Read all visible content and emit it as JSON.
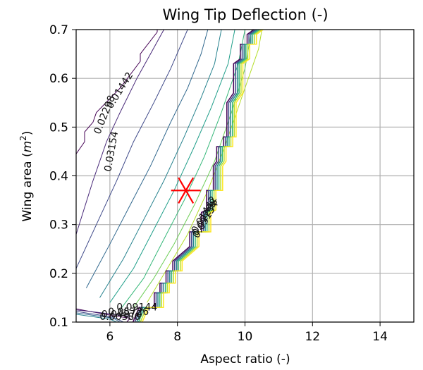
{
  "chart_data": {
    "type": "contour",
    "title": "Wing Tip Deflection (-)",
    "xlabel": "Aspect ratio (-)",
    "ylabel_text": "Wing area (",
    "ylabel_math": "m",
    "ylabel_sup": "2",
    "ylabel_close": ")",
    "xlim": [
      5,
      15
    ],
    "ylim": [
      0.1,
      0.7
    ],
    "xticks": [
      6,
      8,
      10,
      12,
      14
    ],
    "yticks": [
      0.1,
      0.2,
      0.3,
      0.4,
      0.5,
      0.6,
      0.7
    ],
    "xtick_labels": [
      "6",
      "8",
      "10",
      "12",
      "14"
    ],
    "ytick_labels": [
      "0.1",
      "0.2",
      "0.3",
      "0.4",
      "0.5",
      "0.6",
      "0.7"
    ],
    "grid": true,
    "colormap": [
      "#440154",
      "#472c7a",
      "#3b518b",
      "#2c718e",
      "#21908d",
      "#27ad81",
      "#5cc863",
      "#aadc32",
      "#d9e61f",
      "#fde725"
    ],
    "contour_lines": [
      {
        "color": "#440154",
        "points": [
          [
            5.0,
            0.445
          ],
          [
            5.25,
            0.47
          ],
          [
            5.25,
            0.49
          ],
          [
            5.5,
            0.51
          ],
          [
            5.6,
            0.53
          ],
          [
            6.3,
            0.58
          ],
          [
            6.9,
            0.635
          ],
          [
            6.9,
            0.65
          ],
          [
            7.4,
            0.695
          ],
          [
            7.4,
            0.7
          ]
        ]
      },
      {
        "color": "#482979",
        "points": [
          [
            5.0,
            0.28
          ],
          [
            5.5,
            0.39
          ],
          [
            5.9,
            0.47
          ],
          [
            6.3,
            0.53
          ],
          [
            6.8,
            0.6
          ],
          [
            7.2,
            0.65
          ],
          [
            7.6,
            0.7
          ]
        ]
      },
      {
        "color": "#3e4989",
        "points": [
          [
            5.0,
            0.21
          ],
          [
            5.6,
            0.3
          ],
          [
            6.2,
            0.39
          ],
          [
            6.7,
            0.47
          ],
          [
            7.3,
            0.55
          ],
          [
            7.8,
            0.62
          ],
          [
            8.3,
            0.7
          ]
        ]
      },
      {
        "color": "#31688e",
        "points": [
          [
            5.3,
            0.17
          ],
          [
            6.0,
            0.26
          ],
          [
            6.6,
            0.34
          ],
          [
            7.2,
            0.42
          ],
          [
            7.8,
            0.51
          ],
          [
            8.3,
            0.58
          ],
          [
            8.7,
            0.65
          ],
          [
            8.9,
            0.7
          ]
        ]
      },
      {
        "color": "#26828e",
        "points": [
          [
            5.7,
            0.15
          ],
          [
            6.4,
            0.23
          ],
          [
            7.0,
            0.31
          ],
          [
            7.6,
            0.39
          ],
          [
            8.2,
            0.48
          ],
          [
            8.7,
            0.56
          ],
          [
            9.1,
            0.63
          ],
          [
            9.3,
            0.7
          ]
        ]
      },
      {
        "color": "#1f9e89",
        "points": [
          [
            6.0,
            0.14
          ],
          [
            6.7,
            0.21
          ],
          [
            7.3,
            0.29
          ],
          [
            7.9,
            0.37
          ],
          [
            8.5,
            0.46
          ],
          [
            9.0,
            0.54
          ],
          [
            9.5,
            0.63
          ],
          [
            9.7,
            0.7
          ]
        ]
      },
      {
        "color": "#35b779",
        "points": [
          [
            6.3,
            0.125
          ],
          [
            7.0,
            0.19
          ],
          [
            7.6,
            0.27
          ],
          [
            8.2,
            0.35
          ],
          [
            8.8,
            0.44
          ],
          [
            9.3,
            0.53
          ],
          [
            9.8,
            0.63
          ],
          [
            10.0,
            0.7
          ]
        ]
      },
      {
        "color": "#6ece58",
        "points": [
          [
            6.7,
            0.13
          ],
          [
            7.3,
            0.19
          ],
          [
            7.9,
            0.26
          ],
          [
            8.5,
            0.34
          ],
          [
            9.1,
            0.43
          ],
          [
            9.6,
            0.53
          ],
          [
            10.0,
            0.62
          ],
          [
            10.2,
            0.7
          ]
        ]
      },
      {
        "color": "#b5de2b",
        "points": [
          [
            7.1,
            0.14
          ],
          [
            7.7,
            0.21
          ],
          [
            8.3,
            0.28
          ],
          [
            8.9,
            0.37
          ],
          [
            9.4,
            0.46
          ],
          [
            9.9,
            0.56
          ],
          [
            10.4,
            0.66
          ],
          [
            10.5,
            0.7
          ]
        ]
      }
    ],
    "boundary_lines": [
      {
        "color": "#440154",
        "points": [
          [
            5.0,
            0.127
          ],
          [
            6.1,
            0.113
          ],
          [
            6.6,
            0.108
          ],
          [
            6.5,
            0.1
          ]
        ]
      },
      {
        "color": "#482979",
        "points": [
          [
            5.0,
            0.125
          ],
          [
            6.1,
            0.116
          ],
          [
            6.6,
            0.112
          ]
        ]
      },
      {
        "color": "#3e4989",
        "points": [
          [
            5.0,
            0.122
          ],
          [
            6.1,
            0.11
          ],
          [
            6.4,
            0.1
          ]
        ]
      },
      {
        "color": "#31688e",
        "points": [
          [
            5.0,
            0.119
          ],
          [
            6.1,
            0.108
          ],
          [
            6.3,
            0.1
          ]
        ]
      },
      {
        "color": "#26828e",
        "points": [
          [
            5.0,
            0.116
          ],
          [
            6.0,
            0.106
          ],
          [
            6.2,
            0.1
          ]
        ]
      }
    ],
    "boundary_colors": [
      "#440154",
      "#3e4989",
      "#26828e",
      "#35b779",
      "#b5de2b",
      "#fde725"
    ],
    "boundary_base": [
      [
        6.82,
        0.1
      ],
      [
        7.0,
        0.13
      ],
      [
        7.45,
        0.13
      ],
      [
        7.45,
        0.16
      ],
      [
        7.62,
        0.16
      ],
      [
        7.62,
        0.18
      ],
      [
        7.8,
        0.18
      ],
      [
        7.8,
        0.205
      ],
      [
        8.0,
        0.205
      ],
      [
        8.0,
        0.225
      ],
      [
        8.5,
        0.255
      ],
      [
        8.5,
        0.285
      ],
      [
        8.85,
        0.285
      ],
      [
        8.85,
        0.325
      ],
      [
        9.0,
        0.33
      ],
      [
        9.0,
        0.37
      ],
      [
        9.2,
        0.37
      ],
      [
        9.2,
        0.42
      ],
      [
        9.3,
        0.43
      ],
      [
        9.3,
        0.46
      ],
      [
        9.5,
        0.46
      ],
      [
        9.5,
        0.48
      ],
      [
        9.6,
        0.48
      ],
      [
        9.6,
        0.55
      ],
      [
        9.8,
        0.57
      ],
      [
        9.8,
        0.63
      ],
      [
        10.0,
        0.64
      ],
      [
        10.0,
        0.67
      ],
      [
        10.2,
        0.67
      ],
      [
        10.2,
        0.69
      ],
      [
        10.4,
        0.7
      ]
    ],
    "contour_labels": [
      {
        "text": "0.01442",
        "x": 6.3,
        "y": 0.575,
        "rotation": -58
      },
      {
        "text": "0.02298",
        "x": 5.85,
        "y": 0.525,
        "rotation": -68
      },
      {
        "text": "0.03154",
        "x": 6.05,
        "y": 0.45,
        "rotation": -80
      },
      {
        "text": "0.09144",
        "x": 6.8,
        "y": 0.13,
        "rotation": 0
      },
      {
        "text": "0.01442",
        "x": 8.8,
        "y": 0.32,
        "rotation": -60
      },
      {
        "text": "0.02298",
        "x": 8.82,
        "y": 0.315,
        "rotation": -60
      },
      {
        "text": "0.03154",
        "x": 8.84,
        "y": 0.31,
        "rotation": -60
      },
      {
        "text": "0.00586",
        "x": 6.3,
        "y": 0.11,
        "rotation": 0
      },
      {
        "text": "0.04870",
        "x": 6.35,
        "y": 0.115,
        "rotation": 0
      },
      {
        "text": "0.05726",
        "x": 6.55,
        "y": 0.12,
        "rotation": 0
      }
    ],
    "marker": {
      "x": 8.25,
      "y": 0.37,
      "color": "#ff0000",
      "symbol": "asterisk"
    }
  }
}
